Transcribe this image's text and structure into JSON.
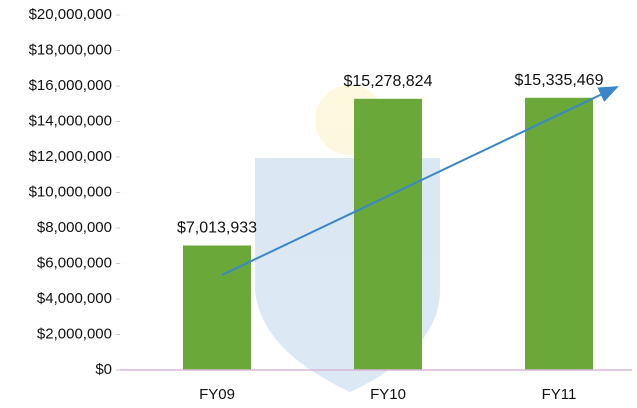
{
  "chart_data": {
    "type": "bar",
    "categories": [
      "FY09",
      "FY10",
      "FY11"
    ],
    "values": [
      7013933,
      15278824,
      15335469
    ],
    "value_labels": [
      "$7,013,933",
      "$15,278,824",
      "$15,335,469"
    ],
    "color": "#6aa83a",
    "ylim": [
      0,
      20000000
    ],
    "yticks": [
      {
        "value": 0,
        "label": "$0"
      },
      {
        "value": 2000000,
        "label": "$2,000,000"
      },
      {
        "value": 4000000,
        "label": "$4,000,000"
      },
      {
        "value": 6000000,
        "label": "$6,000,000"
      },
      {
        "value": 8000000,
        "label": "$8,000,000"
      },
      {
        "value": 10000000,
        "label": "$10,000,000"
      },
      {
        "value": 12000000,
        "label": "$12,000,000"
      },
      {
        "value": 14000000,
        "label": "$14,000,000"
      },
      {
        "value": 16000000,
        "label": "$16,000,000"
      },
      {
        "value": 18000000,
        "label": "$18,000,000"
      },
      {
        "value": 20000000,
        "label": "$20,000,000"
      }
    ]
  }
}
